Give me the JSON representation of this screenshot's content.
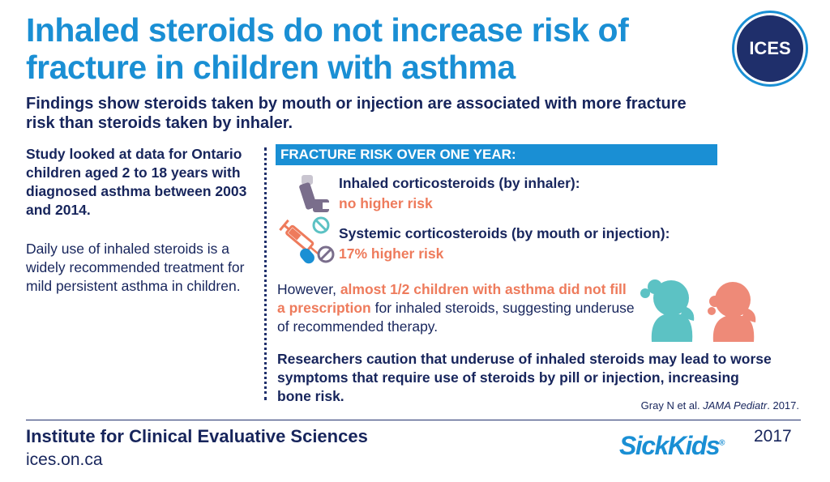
{
  "title": "Inhaled steroids do not increase risk of fracture in children with asthma",
  "subtitle": "Findings show steroids taken by mouth or injection are associated with more fracture risk than steroids taken by inhaler.",
  "logo_text": "ICES",
  "left_column": {
    "study": "Study looked at data for Ontario children aged 2 to 18 years with diagnosed asthma between 2003 and 2014.",
    "daily_use": "Daily use of inhaled steroids is a widely recommended treatment for mild persistent asthma in children."
  },
  "fracture_section": {
    "heading": "FRACTURE RISK OVER ONE YEAR:",
    "rows": [
      {
        "label": "Inhaled corticosteroids (by inhaler):",
        "risk": "no higher risk",
        "icon": "inhaler-icon"
      },
      {
        "label": "Systemic corticosteroids (by mouth or injection):",
        "risk": "17% higher risk",
        "icon": "syringe-pills-icon"
      }
    ]
  },
  "however": {
    "prefix": "However, ",
    "highlight": "almost 1/2 children with asthma did not fill a prescription",
    "suffix": " for inhaled steroids, suggesting underuse of recommended therapy."
  },
  "caution": "Researchers caution that underuse of inhaled steroids may lead to worse symptoms that require use of steroids by pill or injection, increasing bone risk.",
  "citation": {
    "authors": "Gray N et al. ",
    "journal": "JAMA Pediatr",
    "year_suffix": ". 2017."
  },
  "footer": {
    "organization": "Institute for Clinical Evaluative Sciences",
    "website": "ices.on.ca",
    "partner_logo": "SickKids",
    "partner_mark": "®",
    "year": "2017"
  },
  "colors": {
    "title_blue": "#1a8fd4",
    "navy": "#17255c",
    "risk_orange": "#ee7b5c",
    "teal": "#5cc2c4",
    "salmon": "#ee8a78"
  }
}
